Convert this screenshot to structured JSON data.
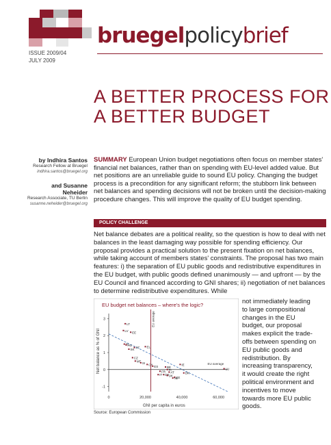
{
  "header": {
    "brand_part1": "bruegel",
    "brand_part2": "policy",
    "brand_part3": "brief",
    "issue": "ISSUE 2009/04",
    "date": "JULY 2009"
  },
  "title_line1": "A BETTER PROCESS FOR",
  "title_line2": "A BETTER BUDGET",
  "authors": [
    {
      "name": "by Indhira Santos",
      "affiliation": "Research Fellow at Bruegel",
      "email": "indhira.santos@bruegel.org"
    },
    {
      "name": "and Susanne Neheider",
      "affiliation": "Research Associate, TU Berlin",
      "email": "susanne.neheider@bruegel.org"
    }
  ],
  "summary": {
    "label": "SUMMARY",
    "text": "European Union budget negotiations often focus on member states' financial net balances, rather than on spending with EU-level added value. But net positions are an unreliable guide to sound EU policy. Changing the budget process is a precondition for any significant reform; the stubborn link between net balances and spending decisions will not be broken until the decision-making procedure changes. This will improve the quality of EU budget spending."
  },
  "section_label": "POLICY CHALLENGE",
  "body_text": "Net balance debates are a political reality, so the question is how to deal with net balances in the least damaging way possible for spending efficiency. Our proposal provides a practical solution to the present fixation on net balances, while taking account of members states' constraints. The proposal has two main features: i) the separation of EU public goods and redistributive expenditures in the EU budget, with public goods defined unanimously — and upfront — by the EU Council and financed according to GNI shares; ii) negotiation of net balances to determine redistributive expenditures. While",
  "body_text_cont": "not immediately leading to large compositional changes in the EU budget, our proposal makes explicit the trade-offs between spending on EU public goods and redistribution. By increasing transparency, it would create the right political environment and incentives to move towards more EU public goods.",
  "source": "Source: European Commission",
  "colors": {
    "accent": "#8b1a2b",
    "trend": "#3a6fb5"
  },
  "chart_data": {
    "type": "scatter",
    "title": "EU budget net balances – where's the logic?",
    "xlabel": "GNI per capita in euros",
    "ylabel": "Net balance as % of GNI",
    "x_ticks": [
      "0",
      "20,000",
      "40,000",
      "60,000"
    ],
    "y_ticks": [
      "3",
      "2",
      "1",
      "0",
      "-1"
    ],
    "xlim": [
      0,
      65000
    ],
    "ylim": [
      -1.3,
      3.3
    ],
    "annotation": "EU average",
    "trend": {
      "x": [
        0,
        65000
      ],
      "y": [
        2.1,
        -1.3
      ]
    },
    "points": [
      {
        "label": "LT",
        "x": 9000,
        "y": 2.7
      },
      {
        "label": "LV",
        "x": 8000,
        "y": 2.3
      },
      {
        "label": "EE",
        "x": 12000,
        "y": 2.2
      },
      {
        "label": "PL",
        "x": 8500,
        "y": 1.5
      },
      {
        "label": "HU",
        "x": 9500,
        "y": 1.45
      },
      {
        "label": "EL",
        "x": 20000,
        "y": 1.35
      },
      {
        "label": "PT",
        "x": 14000,
        "y": 1.3
      },
      {
        "label": "SK",
        "x": 11000,
        "y": 1.2
      },
      {
        "label": "CZ",
        "x": 13000,
        "y": 0.7
      },
      {
        "label": "MT",
        "x": 14500,
        "y": 0.5
      },
      {
        "label": "SI",
        "x": 17500,
        "y": 0.4
      },
      {
        "label": "CY",
        "x": 21000,
        "y": 0.3
      },
      {
        "label": "ES",
        "x": 24000,
        "y": 0.2
      },
      {
        "label": "IE",
        "x": 39000,
        "y": 0.3
      },
      {
        "label": "BE",
        "x": 31000,
        "y": 0.15
      },
      {
        "label": "FI",
        "x": 32000,
        "y": 0.0
      },
      {
        "label": "FR",
        "x": 28000,
        "y": -0.1
      },
      {
        "label": "AT",
        "x": 33000,
        "y": -0.15
      },
      {
        "label": "DK",
        "x": 41000,
        "y": -0.2
      },
      {
        "label": "IT",
        "x": 27000,
        "y": -0.3
      },
      {
        "label": "DE",
        "x": 30000,
        "y": -0.3
      },
      {
        "label": "UK",
        "x": 32000,
        "y": -0.35
      },
      {
        "label": "SE",
        "x": 36000,
        "y": -0.45
      },
      {
        "label": "NL",
        "x": 35000,
        "y": -0.5
      },
      {
        "label": "LU",
        "x": 63000,
        "y": 0.05
      }
    ]
  }
}
